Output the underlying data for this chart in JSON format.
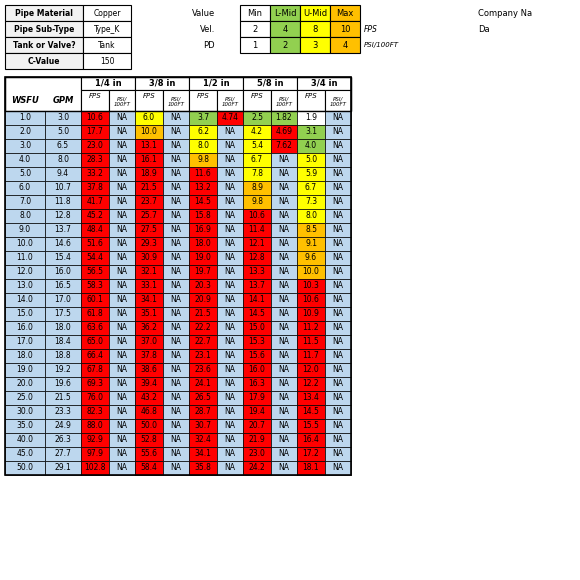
{
  "pipe_info": [
    [
      "Pipe Material",
      "Copper"
    ],
    [
      "Pipe Sub-Type",
      "Type_K"
    ],
    [
      "Tank or Valve?",
      "Tank"
    ],
    [
      "C-Value",
      "150"
    ]
  ],
  "legend_labels": [
    "Min",
    "L-Mid",
    "U-Mid",
    "Max"
  ],
  "legend_colors": [
    "#ffffff",
    "#92d050",
    "#ffff00",
    "#ffc000"
  ],
  "vel_values": [
    "2",
    "4",
    "8",
    "10"
  ],
  "pd_values": [
    "1",
    "2",
    "3",
    "4"
  ],
  "vel_unit": "FPS",
  "pd_unit": "PSI/100FT",
  "pipe_sizes": [
    "1/4 in",
    "3/8 in",
    "1/2 in",
    "5/8 in",
    "3/4 in"
  ],
  "wsfu": [
    1.0,
    2.0,
    3.0,
    4.0,
    5.0,
    6.0,
    7.0,
    8.0,
    9.0,
    10.0,
    11.0,
    12.0,
    13.0,
    14.0,
    15.0,
    16.0,
    17.0,
    18.0,
    19.0,
    20.0,
    25.0,
    30.0,
    35.0,
    40.0,
    45.0,
    50.0
  ],
  "gpm": [
    3.0,
    5.0,
    6.5,
    8.0,
    9.4,
    10.7,
    11.8,
    12.8,
    13.7,
    14.6,
    15.4,
    16.0,
    16.5,
    17.0,
    17.5,
    18.0,
    18.4,
    18.8,
    19.2,
    19.6,
    21.5,
    23.3,
    24.9,
    26.3,
    27.7,
    29.1
  ],
  "pipe_14_fps": [
    10.6,
    17.7,
    23.0,
    28.3,
    33.2,
    37.8,
    41.7,
    45.2,
    48.4,
    51.6,
    54.4,
    56.5,
    58.3,
    60.1,
    61.8,
    63.6,
    65.0,
    66.4,
    67.8,
    69.3,
    76.0,
    82.3,
    88.0,
    92.9,
    97.9,
    102.8
  ],
  "pipe_14_pd": [
    "NA",
    "NA",
    "NA",
    "NA",
    "NA",
    "NA",
    "NA",
    "NA",
    "NA",
    "NA",
    "NA",
    "NA",
    "NA",
    "NA",
    "NA",
    "NA",
    "NA",
    "NA",
    "NA",
    "NA",
    "NA",
    "NA",
    "NA",
    "NA",
    "NA",
    "NA"
  ],
  "pipe_38_fps": [
    6.0,
    10.0,
    13.1,
    16.1,
    18.9,
    21.5,
    23.7,
    25.7,
    27.5,
    29.3,
    30.9,
    32.1,
    33.1,
    34.1,
    35.1,
    36.2,
    37.0,
    37.8,
    38.6,
    39.4,
    43.2,
    46.8,
    50.0,
    52.8,
    55.6,
    58.4
  ],
  "pipe_38_pd": [
    "NA",
    "NA",
    "NA",
    "NA",
    "NA",
    "NA",
    "NA",
    "NA",
    "NA",
    "NA",
    "NA",
    "NA",
    "NA",
    "NA",
    "NA",
    "NA",
    "NA",
    "NA",
    "NA",
    "NA",
    "NA",
    "NA",
    "NA",
    "NA",
    "NA",
    "NA"
  ],
  "pipe_12_fps": [
    3.7,
    6.2,
    8.0,
    9.8,
    11.6,
    13.2,
    14.5,
    15.8,
    16.9,
    18.0,
    19.0,
    19.7,
    20.3,
    20.9,
    21.5,
    22.2,
    22.7,
    23.1,
    23.6,
    24.1,
    26.5,
    28.7,
    30.7,
    32.4,
    34.1,
    35.8
  ],
  "pipe_12_pd": [
    4.74,
    "NA",
    "NA",
    "NA",
    "NA",
    "NA",
    "NA",
    "NA",
    "NA",
    "NA",
    "NA",
    "NA",
    "NA",
    "NA",
    "NA",
    "NA",
    "NA",
    "NA",
    "NA",
    "NA",
    "NA",
    "NA",
    "NA",
    "NA",
    "NA",
    "NA"
  ],
  "pipe_58_fps": [
    2.5,
    4.2,
    5.4,
    6.7,
    7.8,
    8.9,
    9.8,
    10.6,
    11.4,
    12.1,
    12.8,
    13.3,
    13.7,
    14.1,
    14.5,
    15.0,
    15.3,
    15.6,
    16.0,
    16.3,
    17.9,
    19.4,
    20.7,
    21.9,
    23.0,
    24.2
  ],
  "pipe_58_pd": [
    1.82,
    4.69,
    7.62,
    "NA",
    "NA",
    "NA",
    "NA",
    "NA",
    "NA",
    "NA",
    "NA",
    "NA",
    "NA",
    "NA",
    "NA",
    "NA",
    "NA",
    "NA",
    "NA",
    "NA",
    "NA",
    "NA",
    "NA",
    "NA",
    "NA",
    "NA"
  ],
  "pipe_34_fps": [
    1.9,
    3.1,
    4.0,
    5.0,
    5.9,
    6.7,
    7.3,
    8.0,
    8.5,
    9.1,
    9.6,
    10.0,
    10.3,
    10.6,
    10.9,
    11.2,
    11.5,
    11.7,
    12.0,
    12.2,
    13.4,
    14.5,
    15.5,
    16.4,
    17.2,
    18.1
  ],
  "pipe_34_pd": [
    "NA",
    "NA",
    "NA",
    "NA",
    "NA",
    "NA",
    "NA",
    "NA",
    "NA",
    "NA",
    "NA",
    "NA",
    "NA",
    "NA",
    "NA",
    "NA",
    "NA",
    "NA",
    "NA",
    "NA",
    "NA",
    "NA",
    "NA",
    "NA",
    "NA",
    "NA"
  ],
  "bg_blue": "#bdd7ee",
  "bg_header": "#ffffff",
  "color_min": "#ffffff",
  "color_lmid": "#92d050",
  "color_umid": "#ffff00",
  "color_max": "#ffc000",
  "color_over": "#ff0000",
  "company_label": "Company Na",
  "date_label": "Da"
}
